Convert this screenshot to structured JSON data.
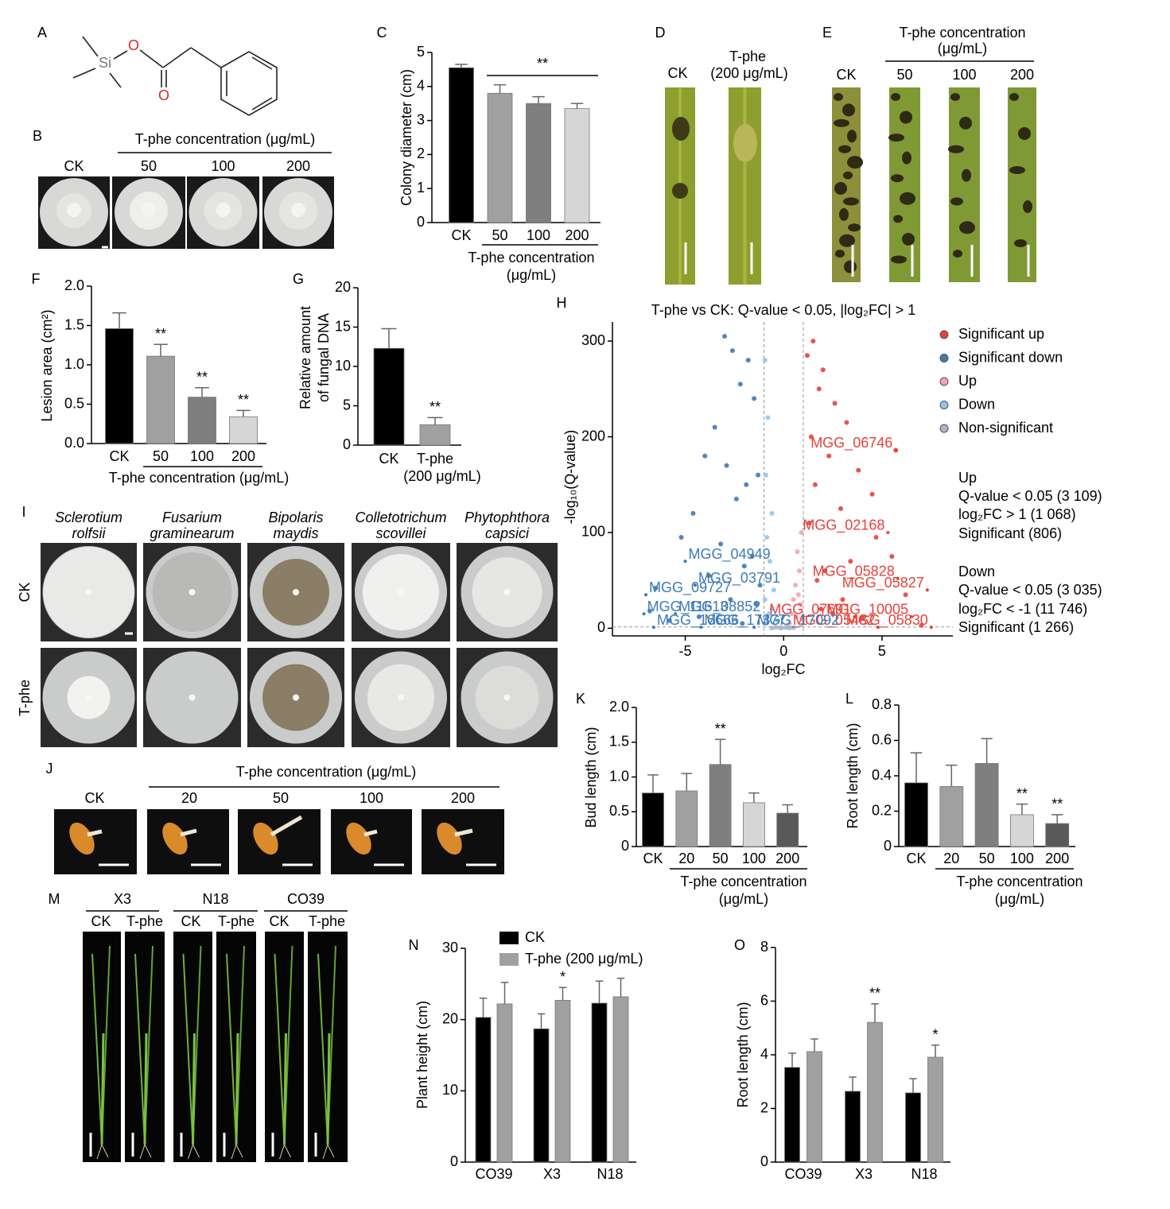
{
  "photo_panels": {
    "A": {
      "label": "A",
      "atoms": [
        "Si",
        "O",
        "O"
      ]
    },
    "B": {
      "label": "B",
      "heading": "T-phe concentration (μg/mL)",
      "columns": [
        "CK",
        "50",
        "100",
        "200"
      ]
    },
    "D": {
      "label": "D",
      "columns": [
        "CK",
        "T-phe"
      ],
      "note": "(200 μg/mL)"
    },
    "E": {
      "label": "E",
      "heading": [
        "T-phe concentration",
        "(μg/mL)"
      ],
      "columns": [
        "CK",
        "50",
        "100",
        "200"
      ]
    },
    "I": {
      "label": "I",
      "species": [
        [
          "Sclerotium",
          "rolfsii"
        ],
        [
          "Fusarium",
          "graminearum"
        ],
        [
          "Bipolaris",
          "maydis"
        ],
        [
          "Colletotrichum",
          "scovillei"
        ],
        [
          "Phytophthora",
          "capsici"
        ]
      ],
      "rows": [
        "CK",
        "T-phe"
      ]
    },
    "J": {
      "label": "J",
      "heading": "T-phe concentration (μg/mL)",
      "columns": [
        "CK",
        "20",
        "50",
        "100",
        "200"
      ]
    },
    "M": {
      "label": "M",
      "groups": [
        "X3",
        "N18",
        "CO39"
      ],
      "columns": [
        "CK",
        "T-phe"
      ]
    }
  },
  "chart_data": [
    {
      "type": "bar",
      "panel": "C",
      "ylabel": "Colony diameter (cm)",
      "xlabel": [
        "T-phe concentration",
        "(μg/mL)"
      ],
      "categories": [
        "CK",
        "50",
        "100",
        "200"
      ],
      "values": [
        4.55,
        3.8,
        3.5,
        3.35
      ],
      "errors": [
        0.1,
        0.25,
        0.2,
        0.15
      ],
      "colors": [
        "#000000",
        "#a0a0a0",
        "#7f7f7f",
        "#d6d6d6"
      ],
      "annotation": "**",
      "ylim": [
        0,
        5
      ],
      "yticks": [
        0,
        1,
        2,
        3,
        4,
        5
      ]
    },
    {
      "type": "bar",
      "panel": "F",
      "ylabel": "Lesion area (cm²)",
      "xlabel": [
        "T-phe concentration (μg/mL)"
      ],
      "categories": [
        "CK",
        "50",
        "100",
        "200"
      ],
      "values": [
        1.46,
        1.11,
        0.59,
        0.34
      ],
      "errors": [
        0.2,
        0.15,
        0.12,
        0.08
      ],
      "colors": [
        "#000000",
        "#a0a0a0",
        "#7f7f7f",
        "#d6d6d6"
      ],
      "significance": [
        null,
        "**",
        "**",
        "**"
      ],
      "ylim": [
        0,
        2
      ],
      "yticks": [
        {
          "value": 0,
          "label": "0.0"
        },
        0.5,
        {
          "value": 1,
          "label": "1.0"
        },
        1.5,
        {
          "value": 2,
          "label": "2.0"
        }
      ]
    },
    {
      "type": "bar",
      "panel": "G",
      "ylabel": [
        "Relative amount",
        "of fungal DNA"
      ],
      "categories": [
        "CK",
        "T-phe"
      ],
      "x_note": "(200 μg/mL)",
      "values": [
        12.3,
        2.6
      ],
      "errors": [
        2.5,
        0.9
      ],
      "colors": [
        "#000000",
        "#a0a0a0"
      ],
      "significance": [
        null,
        "**"
      ],
      "ylim": [
        0,
        20
      ],
      "yticks": [
        0,
        5,
        10,
        15,
        20
      ]
    },
    {
      "type": "scatter",
      "panel": "H",
      "title": "T-phe vs CK: Q-value < 0.05, |log₂FC| > 1",
      "xlabel": "log₂FC",
      "ylabel": "-log₁₀(Q-value)",
      "xlim": [
        -8.7,
        8.6
      ],
      "ylim": [
        -8,
        320
      ],
      "xticks": [
        -5,
        0,
        5
      ],
      "yticks": [
        0,
        100,
        200,
        300
      ],
      "thresholds_x": [
        -1,
        1
      ],
      "threshold_y": 1.3,
      "legend": "right",
      "series": [
        {
          "name": "Significant up",
          "color": "#e8403a",
          "x": [
            1.5,
            1.2,
            2.0,
            1.8,
            2.6,
            3.2,
            1.4,
            2.3,
            3.8,
            1.6,
            4.5,
            5.7,
            2.9,
            1.3,
            4.7,
            5.5,
            3.4,
            2.1,
            1.7,
            6.2,
            3.0,
            1.9,
            2.5,
            4.0,
            7.0
          ],
          "y": [
            300,
            285,
            270,
            250,
            235,
            215,
            200,
            180,
            165,
            150,
            140,
            186,
            125,
            110,
            95,
            75,
            70,
            60,
            50,
            35,
            30,
            20,
            15,
            10,
            3
          ]
        },
        {
          "name": "Significant down",
          "color": "#3d7ab8",
          "x": [
            -3.0,
            -2.6,
            -1.8,
            -2.2,
            -1.5,
            -3.5,
            -4.0,
            -2.9,
            -1.3,
            -1.9,
            -2.4,
            -4.6,
            -5.2,
            -3.2,
            -1.6,
            -2.0,
            -6.5,
            -6.8,
            -3.8,
            -1.2,
            -2.7,
            -1.4,
            -4.3,
            -5.8,
            -2.1
          ],
          "y": [
            305,
            290,
            280,
            255,
            240,
            210,
            180,
            170,
            160,
            150,
            135,
            120,
            95,
            88,
            75,
            65,
            42,
            18,
            55,
            45,
            30,
            25,
            12,
            8,
            5
          ]
        },
        {
          "name": "Up",
          "color": "#f4a3b4",
          "x": [
            0.9,
            0.7,
            0.8,
            0.6,
            0.5,
            0.85,
            0.4,
            0.95,
            0.3,
            0.75,
            0.65,
            0.9
          ],
          "y": [
            100,
            80,
            60,
            45,
            30,
            25,
            15,
            10,
            5,
            35,
            12,
            3
          ]
        },
        {
          "name": "Down",
          "color": "#8fc6ee",
          "x": [
            -0.95,
            -0.8,
            -0.9,
            -0.6,
            -0.85,
            -0.7,
            -0.5,
            -0.95,
            -0.75,
            -0.3,
            -0.9,
            -0.6
          ],
          "y": [
            280,
            220,
            160,
            120,
            95,
            70,
            40,
            30,
            15,
            8,
            5,
            20
          ]
        },
        {
          "name": "Non-significant",
          "color": "#aab6c8",
          "x": [
            -0.2,
            0.1,
            0.3,
            -0.4,
            0.5,
            -0.6,
            0.2,
            -0.1
          ],
          "y": [
            0.5,
            0.8,
            0.3,
            1.0,
            0.6,
            0.2,
            1.1,
            0.4
          ]
        }
      ],
      "annotations": [
        {
          "text": "MGG_06746",
          "x": 5.7,
          "y": 186
        },
        {
          "text": "MGG_02168",
          "x": 5.3,
          "y": 100
        },
        {
          "text": "MGG_05828",
          "x": 5.8,
          "y": 52
        },
        {
          "text": "MGG_05827",
          "x": 7.3,
          "y": 40
        },
        {
          "text": "MGG_10005",
          "x": 6.5,
          "y": 12
        },
        {
          "text": "MGG_07691",
          "x": 3.6,
          "y": 12
        },
        {
          "text": "MGG_05482",
          "x": 4.8,
          "y": 1
        },
        {
          "text": "MGG_05830",
          "x": 7.5,
          "y": 1
        },
        {
          "text": "MGG_09727",
          "x": -7.0,
          "y": 35
        },
        {
          "text": "MGG_04949",
          "x": -5.0,
          "y": 70
        },
        {
          "text": "MGG_03791",
          "x": -4.5,
          "y": 45
        },
        {
          "text": "MGG_11613",
          "x": -7.1,
          "y": 15
        },
        {
          "text": "MGG_08852",
          "x": -5.5,
          "y": 15
        },
        {
          "text": "MGG_16666",
          "x": -6.6,
          "y": 1
        },
        {
          "text": "MGG_17377",
          "x": -4.2,
          "y": 1
        },
        {
          "text": "MGG_17092",
          "x": -1.5,
          "y": 1
        }
      ],
      "notes": [
        "Up",
        "Q-value < 0.05 (3 109)",
        "log₂FC > 1 (1 068)",
        "Significant (806)",
        "Down",
        "Q-value < 0.05 (3 035)",
        "log₂FC < -1 (11 746)",
        "Significant (1 266)"
      ]
    },
    {
      "type": "bar",
      "panel": "K",
      "ylabel": "Bud length (cm)",
      "xlabel": [
        "T-phe concentration",
        "(μg/mL)"
      ],
      "categories": [
        "CK",
        "20",
        "50",
        "100",
        "200"
      ],
      "values": [
        0.77,
        0.8,
        1.18,
        0.63,
        0.48
      ],
      "errors": [
        0.26,
        0.25,
        0.36,
        0.14,
        0.12
      ],
      "colors": [
        "#000000",
        "#a0a0a0",
        "#7f7f7f",
        "#d6d6d6",
        "#595959"
      ],
      "significance": [
        null,
        null,
        "**",
        null,
        null
      ],
      "ylim": [
        0,
        2
      ],
      "yticks": [
        0,
        0.5,
        {
          "value": 1,
          "label": "1.0"
        },
        1.5,
        {
          "value": 2,
          "label": "2.0"
        }
      ]
    },
    {
      "type": "bar",
      "panel": "L",
      "ylabel": "Root length (cm)",
      "xlabel": [
        "T-phe concentration",
        "(μg/mL)"
      ],
      "categories": [
        "CK",
        "20",
        "50",
        "100",
        "200"
      ],
      "values": [
        0.36,
        0.34,
        0.47,
        0.18,
        0.13
      ],
      "errors": [
        0.17,
        0.12,
        0.14,
        0.06,
        0.05
      ],
      "colors": [
        "#000000",
        "#a0a0a0",
        "#7f7f7f",
        "#d6d6d6",
        "#595959"
      ],
      "significance": [
        null,
        null,
        null,
        "**",
        "**"
      ],
      "ylim": [
        0,
        0.8
      ],
      "yticks": [
        0,
        0.2,
        0.4,
        0.6,
        0.8
      ]
    },
    {
      "type": "bar",
      "panel": "N",
      "ylabel": "Plant height (cm)",
      "categories": [
        "CO39",
        "X3",
        "N18"
      ],
      "legend": "top",
      "series": [
        {
          "name": "CK",
          "color": "#000000",
          "values": [
            20.3,
            18.7,
            22.3
          ],
          "errors": [
            2.7,
            2.1,
            3.1
          ]
        },
        {
          "name": "T-phe (200 μg/mL)",
          "color": "#a0a0a0",
          "values": [
            22.2,
            22.7,
            23.2
          ],
          "errors": [
            3.0,
            1.8,
            2.6
          ],
          "significance": [
            null,
            "*",
            null
          ]
        }
      ],
      "ylim": [
        0,
        30
      ],
      "yticks": [
        0,
        10,
        20,
        30
      ]
    },
    {
      "type": "bar",
      "panel": "O",
      "ylabel": "Root length (cm)",
      "categories": [
        "CO39",
        "X3",
        "N18"
      ],
      "series": [
        {
          "color": "#000000",
          "values": [
            3.53,
            2.64,
            2.58
          ],
          "errors": [
            0.53,
            0.53,
            0.53
          ]
        },
        {
          "color": "#a0a0a0",
          "values": [
            4.12,
            5.21,
            3.91
          ],
          "errors": [
            0.47,
            0.69,
            0.45
          ],
          "significance": [
            null,
            "**",
            "*"
          ]
        }
      ],
      "ylim": [
        0,
        8
      ],
      "yticks": [
        0,
        2,
        4,
        6,
        8
      ]
    }
  ]
}
